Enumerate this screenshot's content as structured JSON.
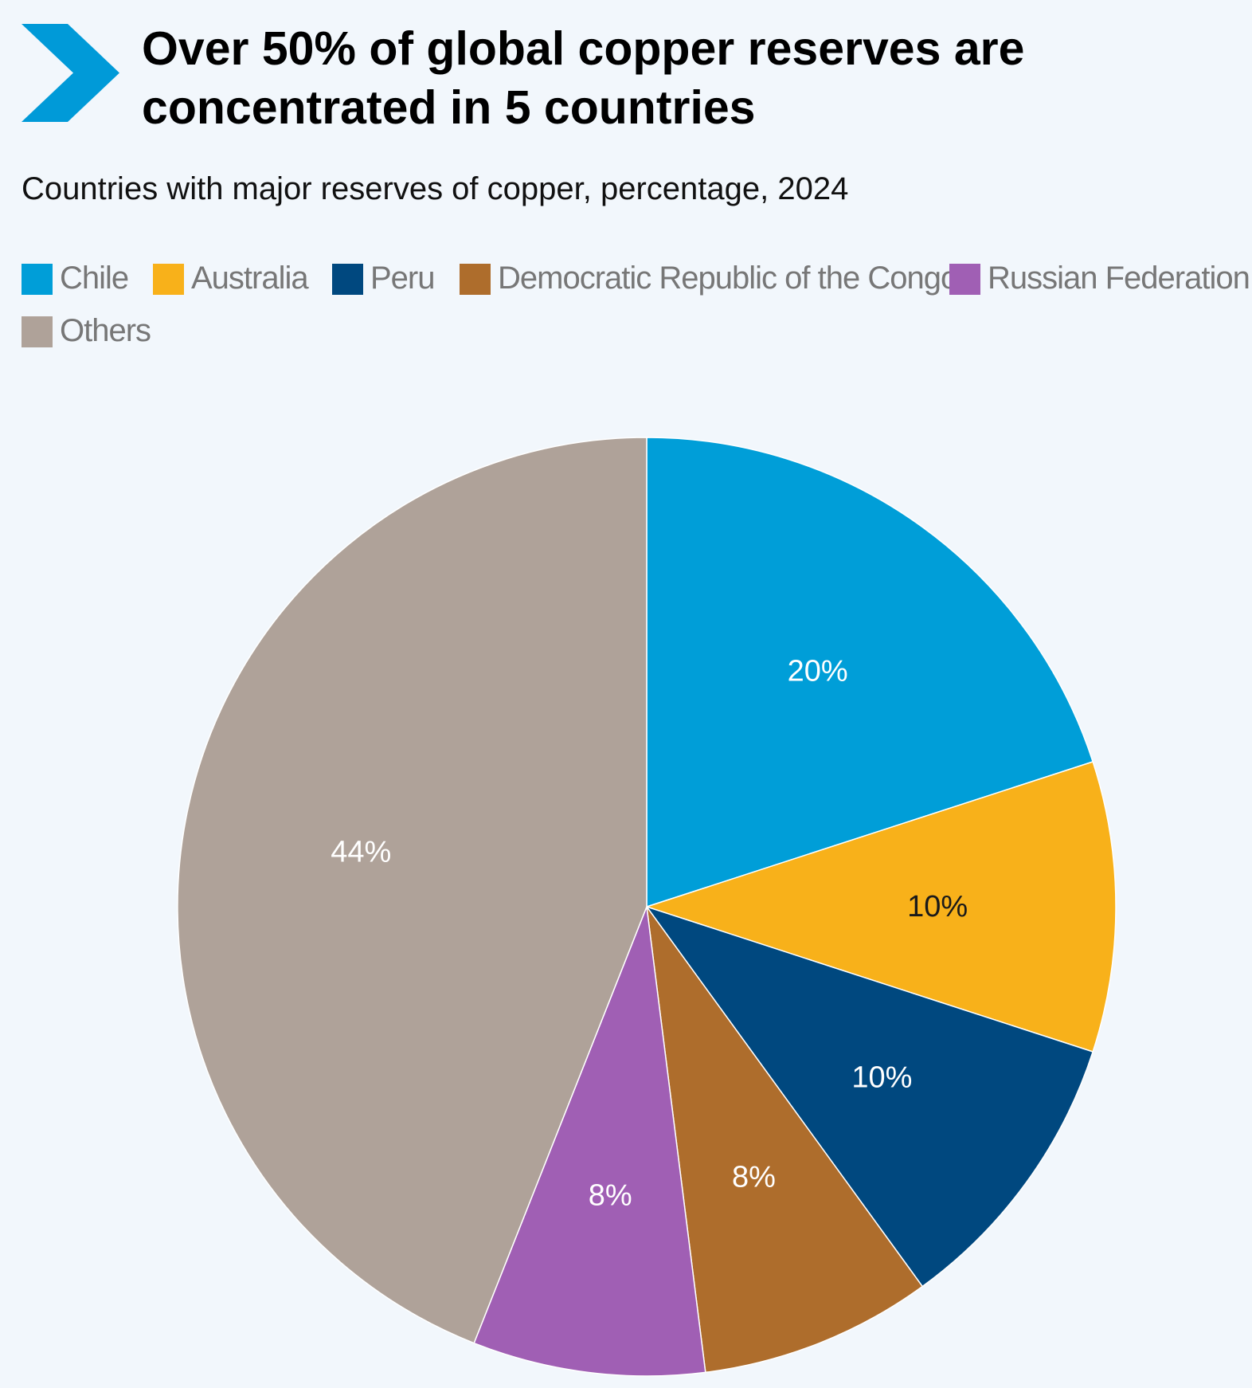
{
  "header": {
    "title_line1": "Over 50% of global copper reserves are",
    "title_line2": "concentrated in 5 countries",
    "accent_color": "#009ad8"
  },
  "chart_data": {
    "type": "pie",
    "title": "Over 50% of global copper reserves are concentrated in 5 countries",
    "subtitle": "Countries with major reserves of copper, percentage, 2024",
    "legend_position": "top",
    "slices": [
      {
        "label": "Chile",
        "value": 20,
        "display": "20%",
        "color": "#009ed8",
        "text_color": "#ffffff"
      },
      {
        "label": "Australia",
        "value": 10,
        "display": "10%",
        "color": "#f8b11a",
        "text_color": "#1a1a1a"
      },
      {
        "label": "Peru",
        "value": 10,
        "display": "10%",
        "color": "#00487f",
        "text_color": "#ffffff"
      },
      {
        "label": "Democratic Republic of the Congo",
        "value": 8,
        "display": "8%",
        "color": "#ae6d2c",
        "text_color": "#ffffff"
      },
      {
        "label": "Russian Federation",
        "value": 8,
        "display": "8%",
        "color": "#a05fb4",
        "text_color": "#ffffff"
      },
      {
        "label": "Others",
        "value": 44,
        "display": "44%",
        "color": "#afa299",
        "text_color": "#ffffff"
      }
    ]
  }
}
